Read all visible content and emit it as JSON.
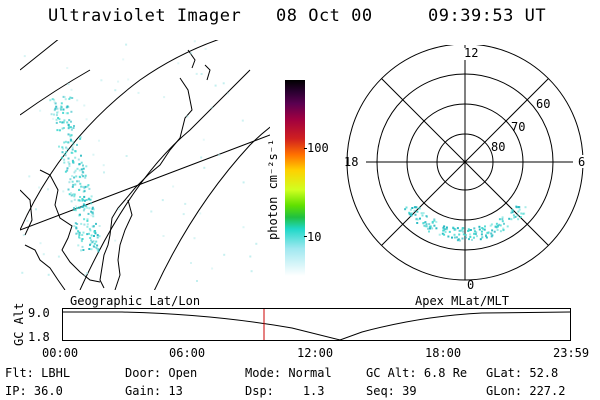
{
  "header": {
    "title": "Ultraviolet Imager",
    "date": "08 Oct 00",
    "time": "09:39:53 UT"
  },
  "colorbar": {
    "unit": "photon cm⁻²s⁻¹",
    "ticks": [
      "100",
      "10"
    ]
  },
  "polar": {
    "mlt_labels": {
      "top": "12",
      "left": "18",
      "right": "6",
      "bottom": "0"
    },
    "lat_labels": [
      "60",
      "70",
      "80"
    ]
  },
  "map_caption": "Geographic Lat/Lon",
  "polar_caption": "Apex MLat/MLT",
  "altitude_plot": {
    "ylabel": "GC Alt",
    "ytick_top": "9.0",
    "ytick_bottom": "1.8",
    "xticks": [
      "00:00",
      "06:00",
      "12:00",
      "18:00",
      "23:59"
    ],
    "current_time_color": "#cc0000"
  },
  "info": {
    "row1": [
      {
        "label": "Flt:",
        "value": "LBHL"
      },
      {
        "label": "Door:",
        "value": "Open"
      },
      {
        "label": "Mode:",
        "value": "Normal"
      },
      {
        "label": "GC Alt:",
        "value": "6.8 Re"
      },
      {
        "label": "GLat:",
        "value": "52.8"
      }
    ],
    "row2": [
      {
        "label": "IP:",
        "value": "36.0"
      },
      {
        "label": "Gain:",
        "value": "13"
      },
      {
        "label": "Dsp:",
        "value": "1.3"
      },
      {
        "label": "Seq:",
        "value": "39"
      },
      {
        "label": "GLon:",
        "value": "227.2"
      }
    ]
  },
  "colors": {
    "aurora": "#40d8d0",
    "aurora_dark": "#20b8c0"
  }
}
